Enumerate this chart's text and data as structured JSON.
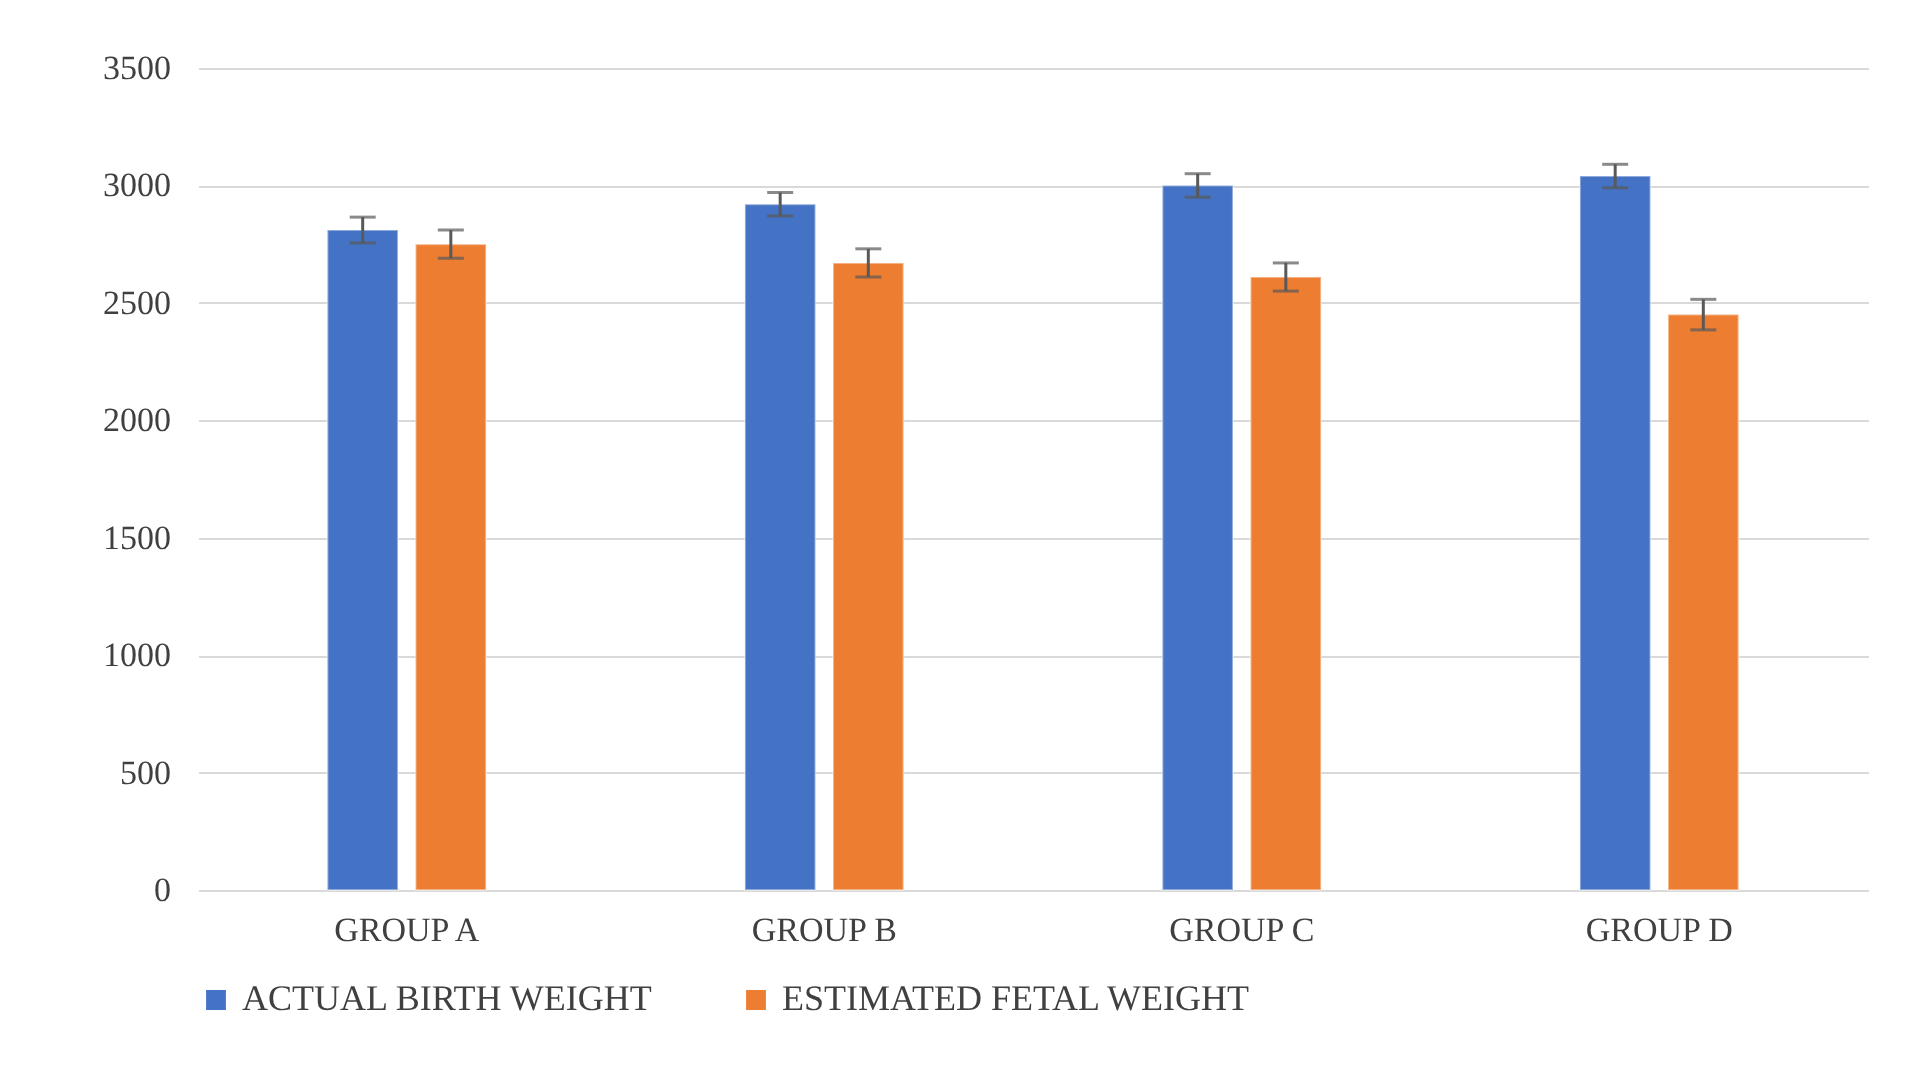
{
  "chart_data": {
    "type": "bar",
    "categories": [
      "GROUP A",
      "GROUP B",
      "GROUP C",
      "GROUP D"
    ],
    "series": [
      {
        "name": "ACTUAL BIRTH WEIGHT",
        "color": "#4472c4",
        "values": [
          2810,
          2920,
          3000,
          3040
        ],
        "errors": [
          55,
          50,
          50,
          50
        ]
      },
      {
        "name": "ESTIMATED FETAL WEIGHT",
        "color": "#ed7d31",
        "values": [
          2750,
          2670,
          2610,
          2450
        ],
        "errors": [
          60,
          60,
          60,
          65
        ]
      }
    ],
    "ylim": [
      0,
      3500
    ],
    "yticks": [
      0,
      500,
      1000,
      1500,
      2000,
      2500,
      3000,
      3500
    ],
    "grid": "y",
    "legend": "bottom"
  }
}
